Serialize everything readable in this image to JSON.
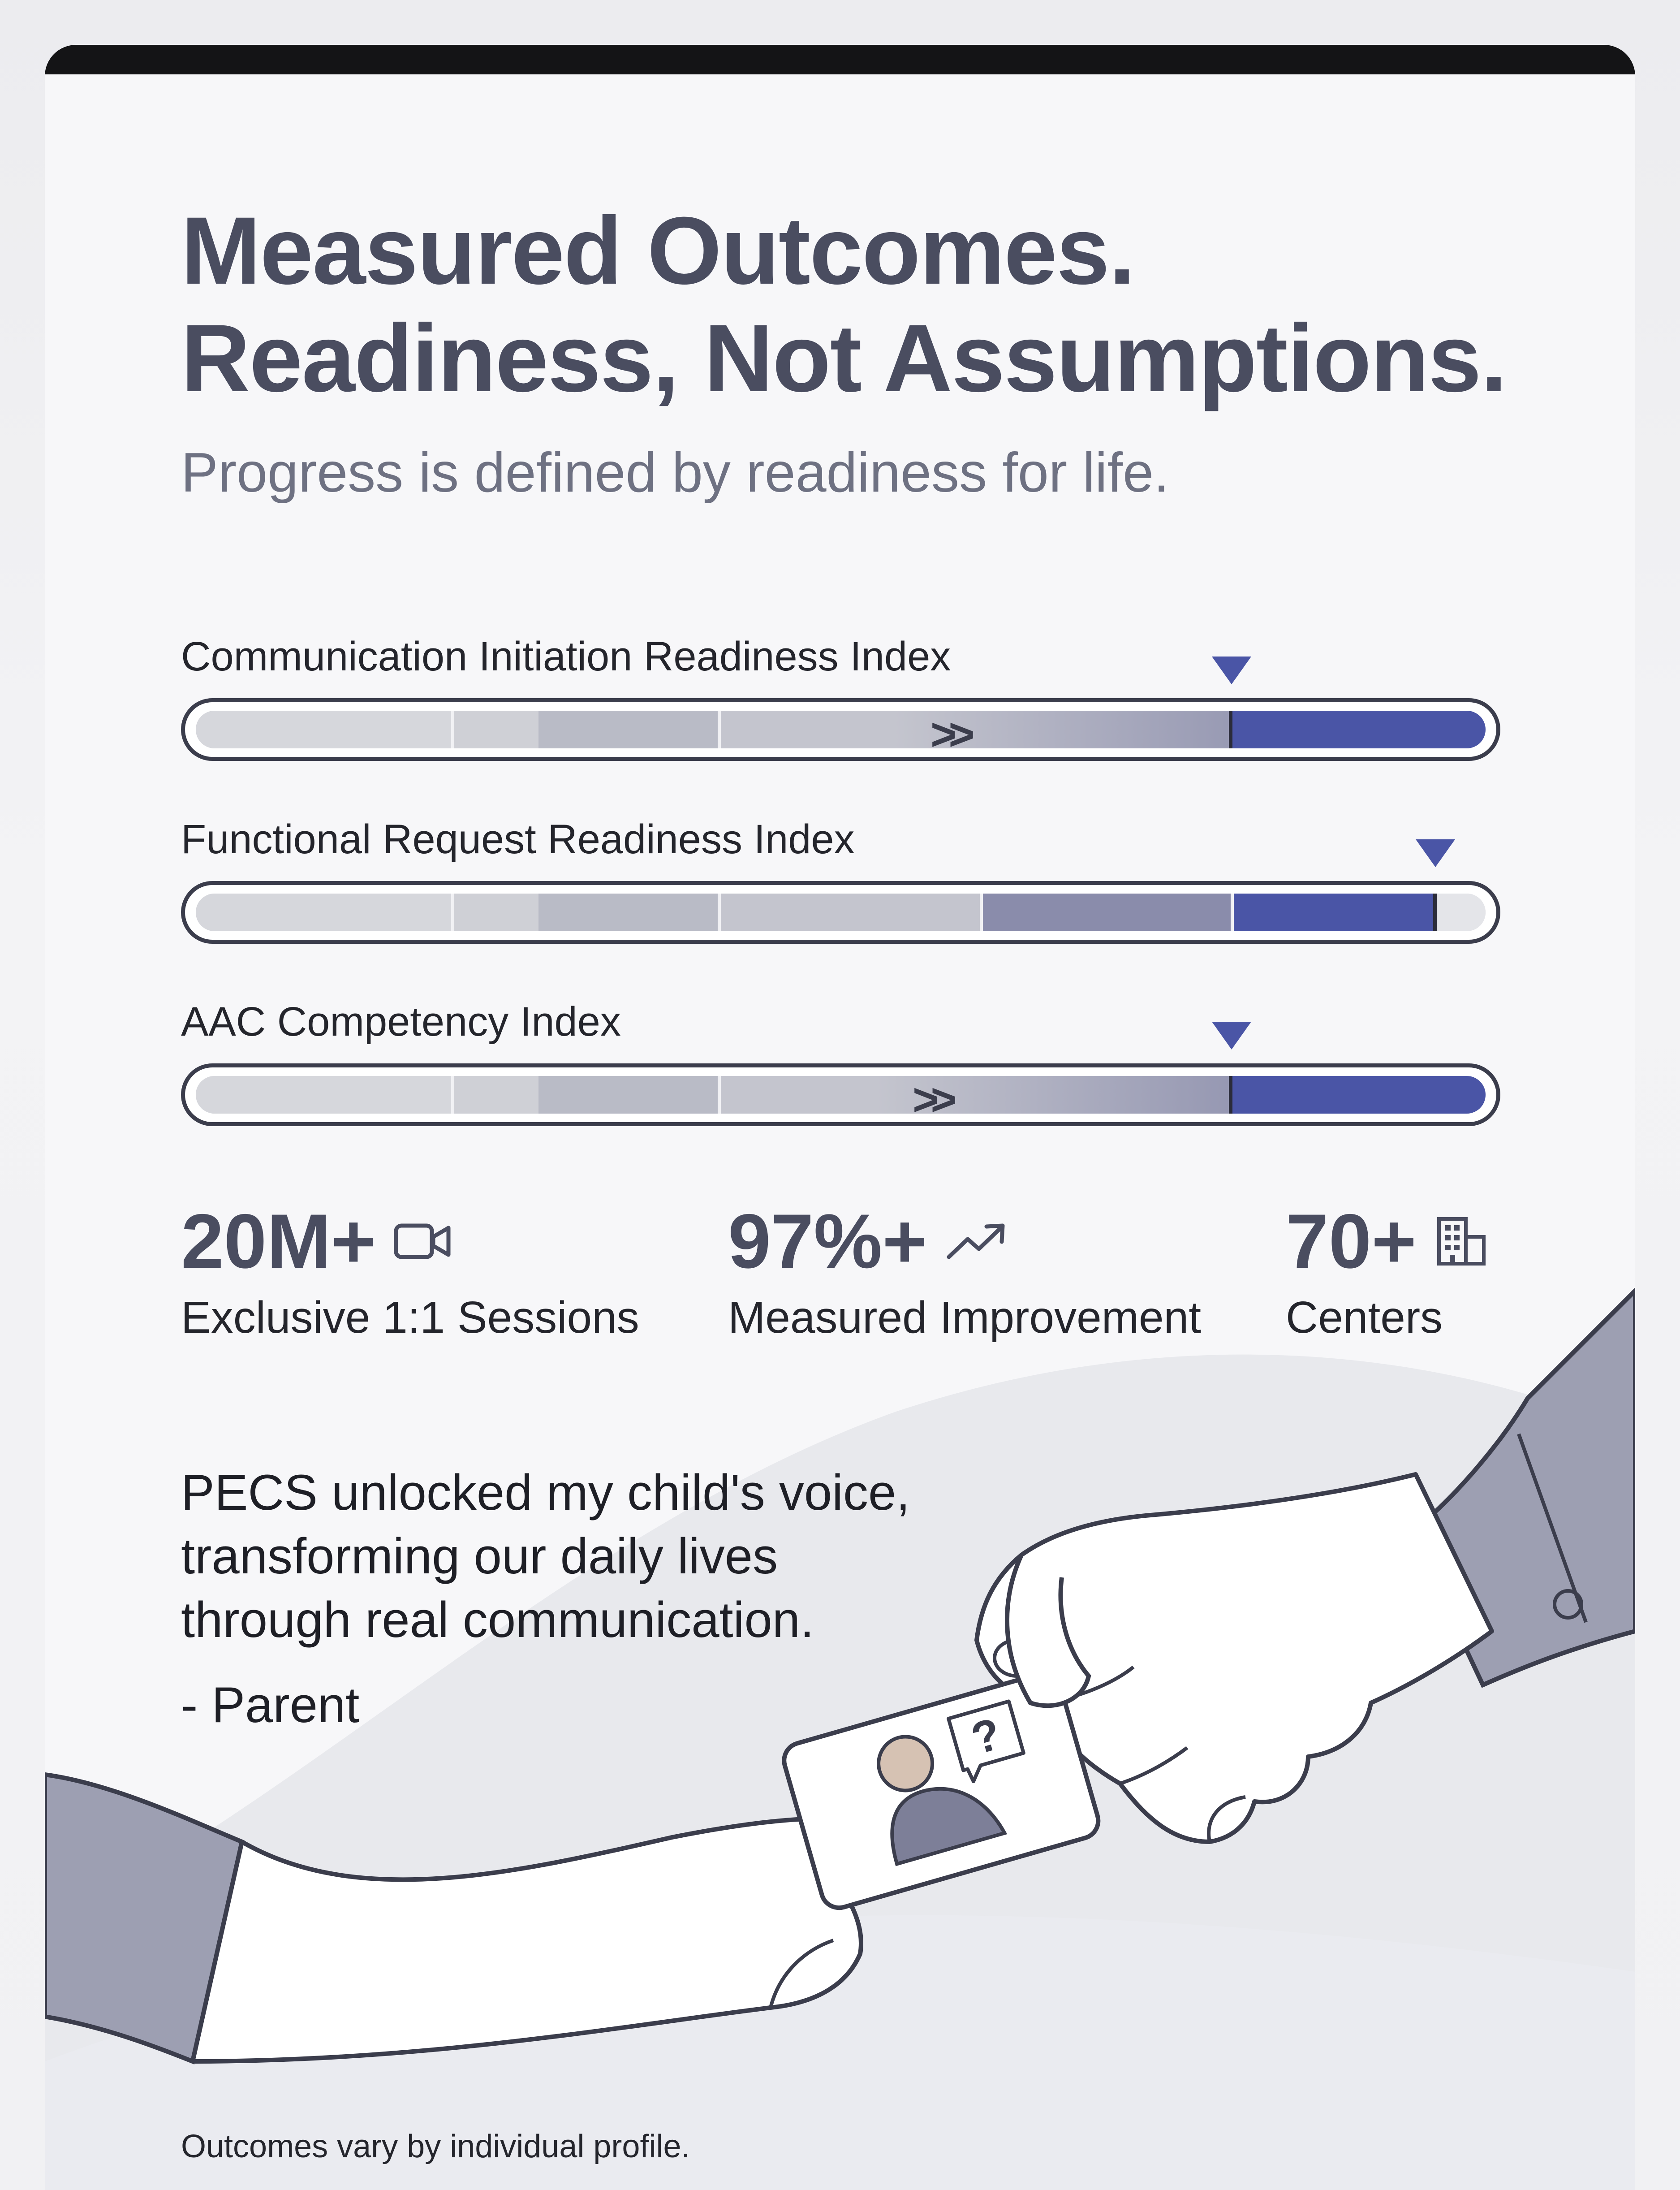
{
  "header": {
    "title_line1": "Measured Outcomes.",
    "title_line2": "Readiness, Not Assumptions.",
    "subtitle": "Progress is defined by readiness for life."
  },
  "indexes": [
    {
      "label": "Communication Initiation Readiness Index",
      "level": 0.8
    },
    {
      "label": "Functional Request Readiness Index",
      "level": 0.96
    },
    {
      "label": "AAC Competency Index",
      "level": 0.8
    }
  ],
  "stats": [
    {
      "value": "20M+",
      "label": "Exclusive 1:1 Sessions",
      "icon": "video-camera-icon"
    },
    {
      "value": "97%+",
      "label": "Measured Improvement",
      "icon": "trend-up-icon"
    },
    {
      "value": "70+",
      "label": "Centers",
      "icon": "building-icon"
    }
  ],
  "testimonial": {
    "line1": "PECS unlocked my child's voice,",
    "line2": "transforming our daily lives",
    "line3": "through real communication.",
    "attribution": "- Parent"
  },
  "footnote": "Outcomes vary by individual profile.",
  "colors": {
    "accent": "#4a55a6",
    "heading": "#4a4d60",
    "text": "#24252c"
  }
}
